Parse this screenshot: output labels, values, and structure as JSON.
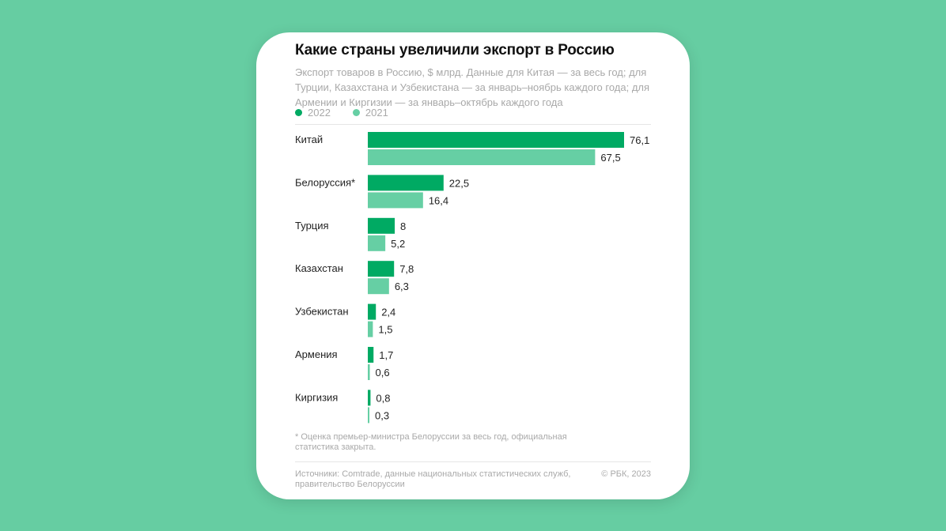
{
  "colors": {
    "background": "#66cda2",
    "series_2022": "#00aa63",
    "series_2021": "#66cfa4"
  },
  "chart_data": {
    "type": "bar",
    "orientation": "horizontal",
    "title": "Какие страны увеличили экспорт в Россию",
    "subtitle": "Экспорт товаров в Россию, $ млрд. Данные для Китая — за весь год; для Турции, Казахстана и Узбекистана — за январь–ноябрь каждого года; для Армении и Киргизии — за январь–октябрь каждого года",
    "categories": [
      "Китай",
      "Белоруссия*",
      "Турция",
      "Казахстан",
      "Узбекистан",
      "Армения",
      "Киргизия"
    ],
    "series": [
      {
        "name": "2022",
        "values": [
          76.1,
          22.5,
          8,
          7.8,
          2.4,
          1.7,
          0.8
        ],
        "labels": [
          "76,1",
          "22,5",
          "8",
          "7,8",
          "2,4",
          "1,7",
          "0,8"
        ]
      },
      {
        "name": "2021",
        "values": [
          67.5,
          16.4,
          5.2,
          6.3,
          1.5,
          0.6,
          0.3
        ],
        "labels": [
          "67,5",
          "16,4",
          "5,2",
          "6,3",
          "1,5",
          "0,6",
          "0,3"
        ]
      }
    ],
    "legend": "top-left",
    "grid": false
  },
  "footnote": "* Оценка премьер-министра Белоруссии за весь год, официальная статистика закрыта.",
  "sources": "Источники: Comtrade, данные национальных статистических служб, правительство Белоруссии",
  "copyright": "© РБК, 2023"
}
